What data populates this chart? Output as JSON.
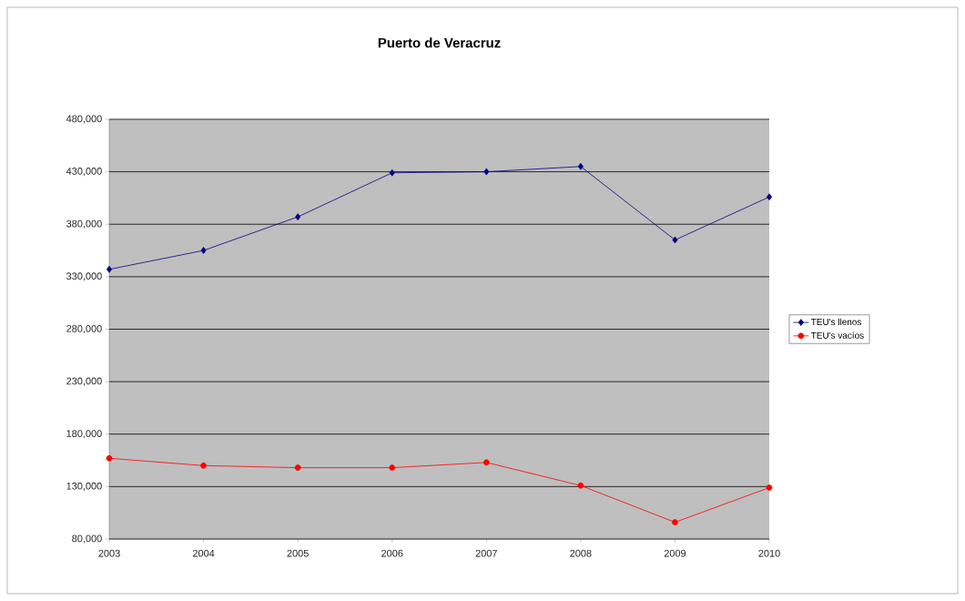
{
  "chart_data": {
    "type": "line",
    "title": "Puerto de Veracruz",
    "categories": [
      "2003",
      "2004",
      "2005",
      "2006",
      "2007",
      "2008",
      "2009",
      "2010"
    ],
    "series": [
      {
        "name": "TEU's llenos",
        "color": "#000080",
        "marker": "diamond",
        "values": [
          337000,
          355000,
          387000,
          429000,
          430000,
          435000,
          365000,
          406000
        ]
      },
      {
        "name": "TEU's vacíos",
        "color": "#ff0000",
        "marker": "circle",
        "values": [
          157000,
          150000,
          148000,
          148000,
          153000,
          131000,
          96000,
          129000
        ]
      }
    ],
    "ylim": [
      80000,
      480000
    ],
    "yticks": [
      {
        "value": 80000,
        "label": "80,000"
      },
      {
        "value": 130000,
        "label": "130,000"
      },
      {
        "value": 180000,
        "label": "180,000"
      },
      {
        "value": 230000,
        "label": "230,000"
      },
      {
        "value": 280000,
        "label": "280,000"
      },
      {
        "value": 330000,
        "label": "330,000"
      },
      {
        "value": 380000,
        "label": "380,000"
      },
      {
        "value": 430000,
        "label": "430,000"
      },
      {
        "value": 480000,
        "label": "480,000"
      }
    ],
    "grid": "y",
    "legend": "right",
    "line_style": "solid"
  }
}
